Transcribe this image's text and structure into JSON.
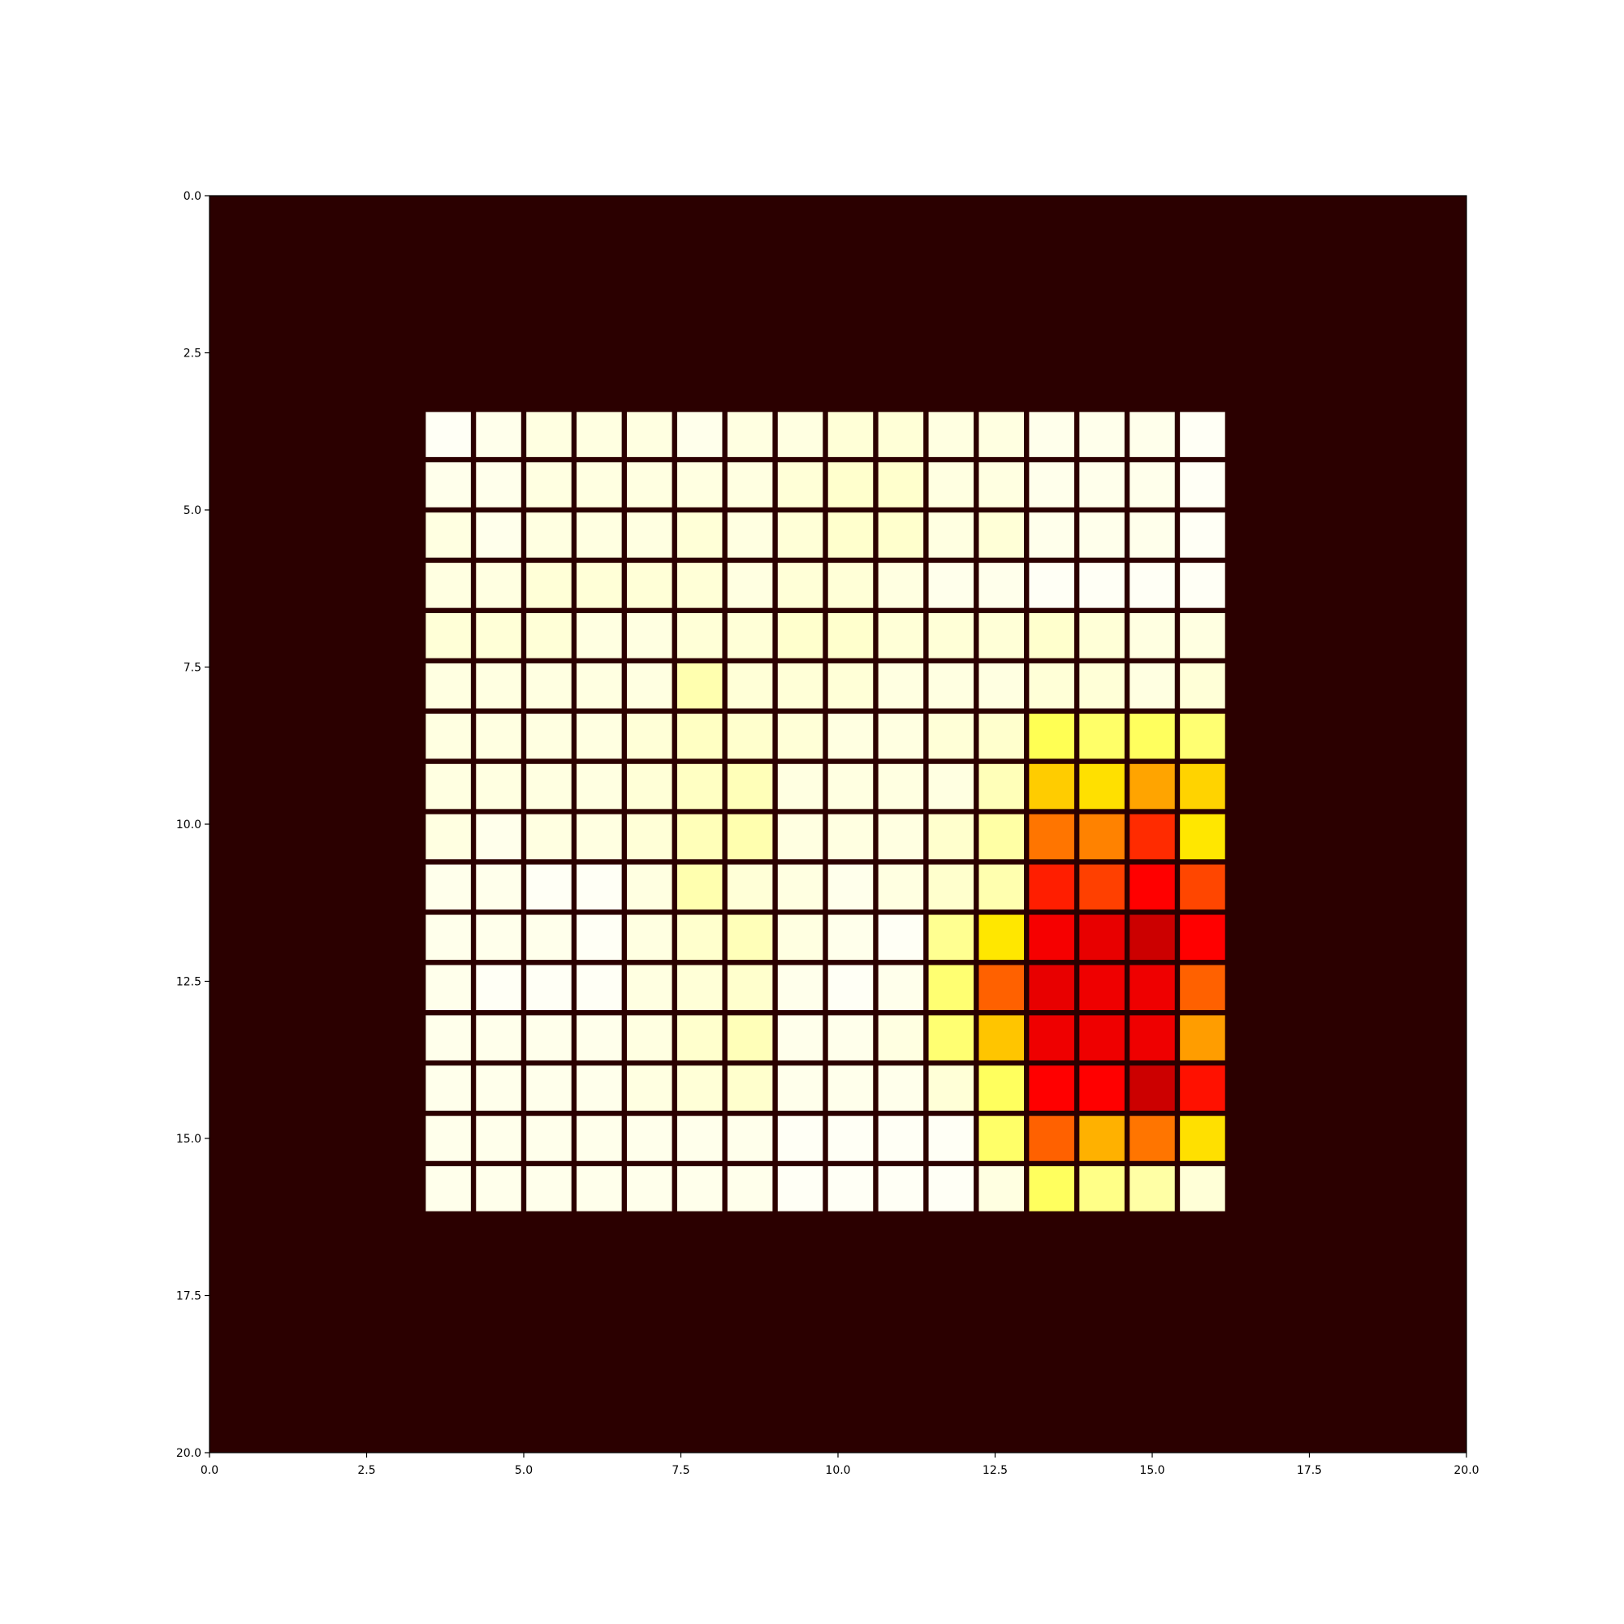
{
  "chart_data": {
    "type": "heatmap",
    "title": "",
    "xlabel": "",
    "ylabel": "",
    "colormap": "hot",
    "value_range": [
      0,
      1
    ],
    "xlim": [
      0,
      20
    ],
    "ylim": [
      20,
      0
    ],
    "x_ticks": [
      0,
      2.5,
      5,
      7.5,
      10,
      12.5,
      15,
      17.5,
      20
    ],
    "y_ticks": [
      0,
      2.5,
      5,
      7.5,
      10,
      12.5,
      15,
      17.5,
      20
    ],
    "x_tick_labels": [
      "0.0",
      "2.5",
      "5.0",
      "7.5",
      "10.0",
      "12.5",
      "15.0",
      "17.5",
      "20.0"
    ],
    "y_tick_labels": [
      "0.0",
      "2.5",
      "5.0",
      "7.5",
      "10.0",
      "12.5",
      "15.0",
      "17.5",
      "20.0"
    ],
    "grid": false,
    "legend": "none",
    "background_value": 0.02,
    "cell_grid_color": "#000000",
    "grid_origin": [
      3.4,
      3.4
    ],
    "cell_size": 0.8,
    "values": [
      [
        0.99,
        0.98,
        0.97,
        0.97,
        0.97,
        0.98,
        0.97,
        0.97,
        0.96,
        0.96,
        0.97,
        0.97,
        0.98,
        0.98,
        0.98,
        0.99
      ],
      [
        0.98,
        0.98,
        0.97,
        0.97,
        0.97,
        0.97,
        0.97,
        0.96,
        0.95,
        0.95,
        0.97,
        0.97,
        0.98,
        0.98,
        0.98,
        0.99
      ],
      [
        0.97,
        0.98,
        0.97,
        0.97,
        0.97,
        0.96,
        0.97,
        0.96,
        0.95,
        0.95,
        0.97,
        0.96,
        0.98,
        0.98,
        0.98,
        0.99
      ],
      [
        0.97,
        0.97,
        0.96,
        0.96,
        0.96,
        0.96,
        0.97,
        0.96,
        0.96,
        0.97,
        0.98,
        0.98,
        0.99,
        0.99,
        0.99,
        0.99
      ],
      [
        0.96,
        0.96,
        0.96,
        0.97,
        0.97,
        0.96,
        0.96,
        0.95,
        0.95,
        0.96,
        0.96,
        0.96,
        0.95,
        0.96,
        0.97,
        0.97
      ],
      [
        0.97,
        0.97,
        0.97,
        0.97,
        0.97,
        0.92,
        0.96,
        0.96,
        0.96,
        0.97,
        0.97,
        0.97,
        0.96,
        0.96,
        0.97,
        0.96
      ],
      [
        0.97,
        0.97,
        0.97,
        0.97,
        0.96,
        0.94,
        0.95,
        0.96,
        0.97,
        0.97,
        0.96,
        0.95,
        0.83,
        0.85,
        0.84,
        0.86
      ],
      [
        0.97,
        0.97,
        0.97,
        0.97,
        0.96,
        0.94,
        0.93,
        0.97,
        0.97,
        0.97,
        0.97,
        0.93,
        0.67,
        0.7,
        0.61,
        0.68
      ],
      [
        0.97,
        0.98,
        0.97,
        0.97,
        0.96,
        0.93,
        0.92,
        0.97,
        0.97,
        0.97,
        0.95,
        0.91,
        0.54,
        0.56,
        0.43,
        0.71
      ],
      [
        0.98,
        0.98,
        0.99,
        0.99,
        0.97,
        0.92,
        0.96,
        0.97,
        0.98,
        0.97,
        0.95,
        0.92,
        0.41,
        0.46,
        0.36,
        0.47
      ],
      [
        0.98,
        0.98,
        0.98,
        0.99,
        0.97,
        0.95,
        0.93,
        0.97,
        0.98,
        0.99,
        0.89,
        0.71,
        0.31,
        0.29,
        0.25,
        0.36
      ],
      [
        0.98,
        0.99,
        0.99,
        0.99,
        0.97,
        0.96,
        0.95,
        0.98,
        0.99,
        0.98,
        0.86,
        0.51,
        0.29,
        0.3,
        0.3,
        0.51
      ],
      [
        0.98,
        0.98,
        0.98,
        0.98,
        0.97,
        0.95,
        0.93,
        0.98,
        0.98,
        0.97,
        0.86,
        0.66,
        0.3,
        0.3,
        0.3,
        0.6
      ],
      [
        0.98,
        0.98,
        0.98,
        0.98,
        0.97,
        0.96,
        0.95,
        0.98,
        0.98,
        0.98,
        0.96,
        0.84,
        0.36,
        0.34,
        0.25,
        0.39
      ],
      [
        0.98,
        0.98,
        0.98,
        0.98,
        0.98,
        0.98,
        0.98,
        0.99,
        0.99,
        0.99,
        0.99,
        0.85,
        0.51,
        0.63,
        0.54,
        0.7
      ],
      [
        0.98,
        0.98,
        0.98,
        0.98,
        0.98,
        0.98,
        0.98,
        0.99,
        0.99,
        0.99,
        0.99,
        0.97,
        0.84,
        0.88,
        0.91,
        0.96
      ]
    ]
  }
}
